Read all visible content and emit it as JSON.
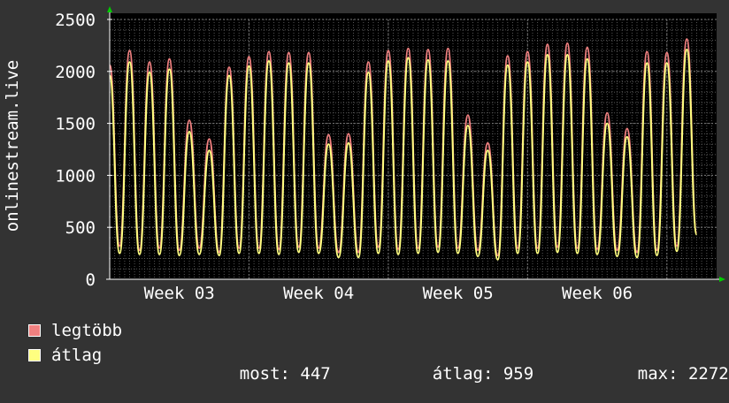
{
  "colors": {
    "background": "#333333",
    "plot_background": "#000000",
    "grid": "#555555",
    "axis": "#ffffff",
    "arrow": "#00cc00",
    "max_series": "#f08080",
    "avg_series": "#ffff80"
  },
  "chart_data": {
    "type": "line",
    "ylabel": "onlinestream.live",
    "ylim": [
      0,
      2500
    ],
    "yticks": [
      0,
      500,
      1000,
      1500,
      2000,
      2500
    ],
    "xticks": [
      {
        "label": "Week 03",
        "day": 3.5
      },
      {
        "label": "Week 04",
        "day": 10.5
      },
      {
        "label": "Week 05",
        "day": 17.5
      },
      {
        "label": "Week 06",
        "day": 24.5
      }
    ],
    "xlim_days": [
      0,
      30.5
    ],
    "grid": true,
    "legend_position": "bottom-left",
    "series_days": [
      0,
      0.5,
      1,
      1.5,
      2,
      2.5,
      3,
      3.5,
      4,
      4.5,
      5,
      5.5,
      6,
      6.5,
      7,
      7.5,
      8,
      8.5,
      9,
      9.5,
      10,
      10.5,
      11,
      11.5,
      12,
      12.5,
      13,
      13.5,
      14,
      14.5,
      15,
      15.5,
      16,
      16.5,
      17,
      17.5,
      18,
      18.5,
      19,
      19.5,
      20,
      20.5,
      21,
      21.5,
      22,
      22.5,
      23,
      23.5,
      24,
      24.5,
      25,
      25.5,
      26,
      26.5,
      27,
      27.5,
      28,
      28.5,
      29,
      29.5,
      30,
      30.5
    ],
    "series": [
      {
        "name": "legtöbb",
        "values": [
          2060,
          320,
          2200,
          280,
          2090,
          300,
          2120,
          280,
          1530,
          300,
          1350,
          260,
          2040,
          300,
          2140,
          300,
          2190,
          290,
          2180,
          310,
          2180,
          300,
          1390,
          260,
          1400,
          260,
          2090,
          310,
          2200,
          290,
          2220,
          300,
          2210,
          310,
          2220,
          300,
          1580,
          280,
          1310,
          230,
          2150,
          300,
          2190,
          300,
          2260,
          310,
          2270,
          300,
          2230,
          290,
          1600,
          280,
          1450,
          260,
          2190,
          280,
          2180,
          320,
          2310,
          447
        ]
      },
      {
        "name": "átlag",
        "values": [
          1960,
          250,
          2090,
          240,
          1990,
          240,
          2020,
          230,
          1420,
          240,
          1240,
          230,
          1960,
          250,
          2050,
          250,
          2100,
          240,
          2080,
          260,
          2080,
          250,
          1300,
          210,
          1310,
          210,
          1990,
          250,
          2100,
          240,
          2130,
          250,
          2110,
          260,
          2100,
          250,
          1480,
          220,
          1240,
          190,
          2060,
          250,
          2090,
          250,
          2160,
          260,
          2160,
          250,
          2120,
          240,
          1500,
          220,
          1370,
          210,
          2080,
          230,
          2080,
          270,
          2210,
          430
        ]
      }
    ]
  },
  "legend": {
    "items": [
      {
        "label": "legtöbb"
      },
      {
        "label": "átlag"
      }
    ],
    "stats": {
      "now_label": "most:",
      "now_value": "447",
      "avg_label": "átlag:",
      "avg_value": "959",
      "max_label": "max:",
      "max_value": "2272"
    }
  }
}
